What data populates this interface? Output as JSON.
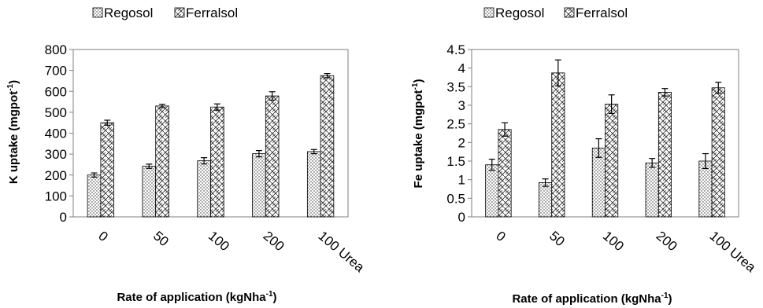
{
  "colors": {
    "axis": "#7f7f7f",
    "bar_stroke": "#000000",
    "text": "#000000"
  },
  "chart_data": [
    {
      "type": "bar",
      "categories": [
        "0",
        "50",
        "100",
        "200",
        "100 Urea"
      ],
      "series": [
        {
          "name": "Regosol",
          "pattern": "dots",
          "values": [
            200,
            242,
            268,
            302,
            312
          ],
          "errors": [
            10,
            10,
            15,
            15,
            10
          ]
        },
        {
          "name": "Ferralsol",
          "pattern": "weave",
          "values": [
            450,
            530,
            525,
            578,
            675
          ],
          "errors": [
            12,
            8,
            15,
            20,
            10
          ]
        }
      ],
      "ylim": [
        0,
        800
      ],
      "yticks": [
        "0",
        "100",
        "200",
        "300",
        "400",
        "500",
        "600",
        "700",
        "800"
      ],
      "ylabel": {
        "main": "K uptake (mgpot",
        "sup": "-1",
        "end": ")"
      },
      "xlabel": {
        "main": "Rate of application (kgNha",
        "sup": "-1",
        "end": ")"
      },
      "legend": "top-left"
    },
    {
      "type": "bar",
      "categories": [
        "0",
        "50",
        "100",
        "200",
        "100 Urea"
      ],
      "series": [
        {
          "name": "Regosol",
          "pattern": "dots",
          "values": [
            1.4,
            0.92,
            1.85,
            1.45,
            1.5
          ],
          "errors": [
            0.15,
            0.1,
            0.25,
            0.12,
            0.2
          ]
        },
        {
          "name": "Ferralsol",
          "pattern": "weave",
          "values": [
            2.35,
            3.87,
            3.03,
            3.35,
            3.47
          ],
          "errors": [
            0.18,
            0.35,
            0.25,
            0.1,
            0.15
          ]
        }
      ],
      "ylim": [
        0,
        4.5
      ],
      "yticks": [
        "0",
        "0.5",
        "1",
        "1.5",
        "2",
        "2.5",
        "3",
        "3.5",
        "4",
        "4.5"
      ],
      "ylabel": {
        "main": "Fe uptake (mgpot",
        "sup": "-1",
        "end": ")"
      },
      "xlabel": {
        "main": "Rate of application (kgNha",
        "sup": "-1",
        "end": ")"
      },
      "legend": "top"
    }
  ]
}
